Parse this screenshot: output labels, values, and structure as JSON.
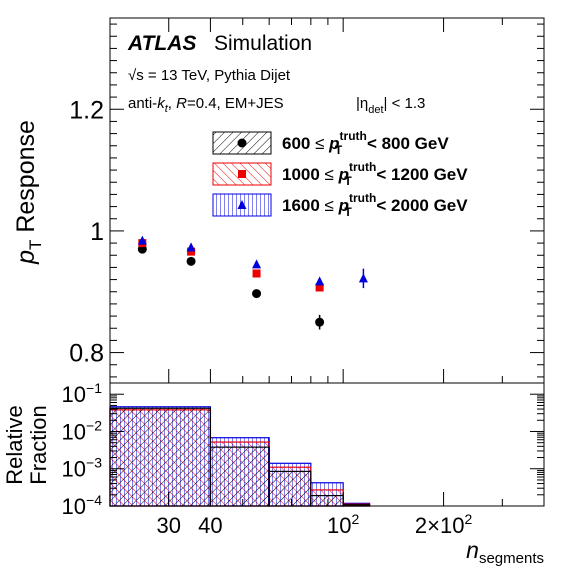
{
  "chart_data": [
    {
      "type": "scatter",
      "panel": "upper",
      "ylabel_main": "p",
      "ylabel_sub": "T",
      "ylabel_rest": " Response",
      "xlabel_main": "n",
      "xlabel_sub": "segments",
      "x_scale": "log",
      "xlim": [
        20,
        400
      ],
      "ylim": [
        0.75,
        1.35
      ],
      "y_ticks": [
        0.8,
        1.0,
        1.2
      ],
      "y_tick_labels": [
        "0.8",
        "1",
        "1.2"
      ],
      "annotations": {
        "atlas": "ATLAS",
        "simulation": "Simulation",
        "line1": "√s = 13 TeV, Pythia Dijet",
        "line2_a": "anti-",
        "line2_k": "k",
        "line2_t": "t",
        "line2_b": ", ",
        "line2_R": "R",
        "line2_c": "=0.4, EM+JES",
        "eta_pre": "|η",
        "eta_sub": "det",
        "eta_post": "| < 1.3"
      },
      "series": [
        {
          "name": {
            "low": "600",
            "op1": "≤",
            "p": "p",
            "sup": "truth",
            "sub": "T",
            "high": "< 800 GeV"
          },
          "color": "#000000",
          "marker": "circle",
          "hatch": "black",
          "points": [
            {
              "x": 25,
              "y": 0.97,
              "err": 0.003
            },
            {
              "x": 35,
              "y": 0.95,
              "err": 0.003
            },
            {
              "x": 55,
              "y": 0.897,
              "err": 0.004
            },
            {
              "x": 85,
              "y": 0.85,
              "err": 0.012
            }
          ]
        },
        {
          "name": {
            "low": "1000",
            "op1": "≤",
            "p": "p",
            "sup": "truth",
            "sub": "T",
            "high": "< 1200 GeV"
          },
          "color": "#ee0000",
          "marker": "square",
          "hatch": "red",
          "points": [
            {
              "x": 25,
              "y": 0.98,
              "err": 0.003
            },
            {
              "x": 35,
              "y": 0.966,
              "err": 0.003
            },
            {
              "x": 55,
              "y": 0.93,
              "err": 0.003
            },
            {
              "x": 85,
              "y": 0.907,
              "err": 0.004
            }
          ]
        },
        {
          "name": {
            "low": "1600",
            "op1": "≤",
            "p": "p",
            "sup": "truth",
            "sub": "T",
            "high": "< 2000 GeV"
          },
          "color": "#0000dd",
          "marker": "triangle",
          "hatch": "blue",
          "points": [
            {
              "x": 25,
              "y": 0.984,
              "err": 0.003
            },
            {
              "x": 35,
              "y": 0.973,
              "err": 0.003
            },
            {
              "x": 55,
              "y": 0.945,
              "err": 0.003
            },
            {
              "x": 85,
              "y": 0.917,
              "err": 0.004
            },
            {
              "x": 115,
              "y": 0.922,
              "err": 0.016
            }
          ]
        }
      ]
    },
    {
      "type": "histogram",
      "panel": "lower",
      "ylabel_line1": "Relative",
      "ylabel_line2": "Fraction",
      "y_scale": "log",
      "ylim": [
        0.0001,
        0.2
      ],
      "y_ticks": [
        {
          "base": "10",
          "exp": "−4",
          "value": 0.0001
        },
        {
          "base": "10",
          "exp": "−3",
          "value": 0.001
        },
        {
          "base": "10",
          "exp": "−2",
          "value": 0.01
        },
        {
          "base": "10",
          "exp": "−1",
          "value": 0.1
        }
      ],
      "x_ticks": [
        {
          "value": 30,
          "label": "30",
          "exp": ""
        },
        {
          "value": 40,
          "label": "40",
          "exp": ""
        },
        {
          "value": 100,
          "label": "10",
          "exp": "2"
        },
        {
          "value": 200,
          "label": "2×10",
          "exp": "2"
        }
      ],
      "bin_edges": [
        20,
        40,
        60,
        80,
        100,
        120,
        400
      ],
      "series": [
        {
          "color": "#000000",
          "values": [
            0.042,
            0.0038,
            0.00085,
            0.00019,
            0.000108,
            0.0001
          ]
        },
        {
          "color": "#ee0000",
          "values": [
            0.038,
            0.0052,
            0.0011,
            0.00027,
            0.000112,
            0.0001
          ]
        },
        {
          "color": "#0000dd",
          "values": [
            0.046,
            0.0068,
            0.0014,
            0.00042,
            0.000118,
            0.0001
          ]
        }
      ]
    }
  ]
}
